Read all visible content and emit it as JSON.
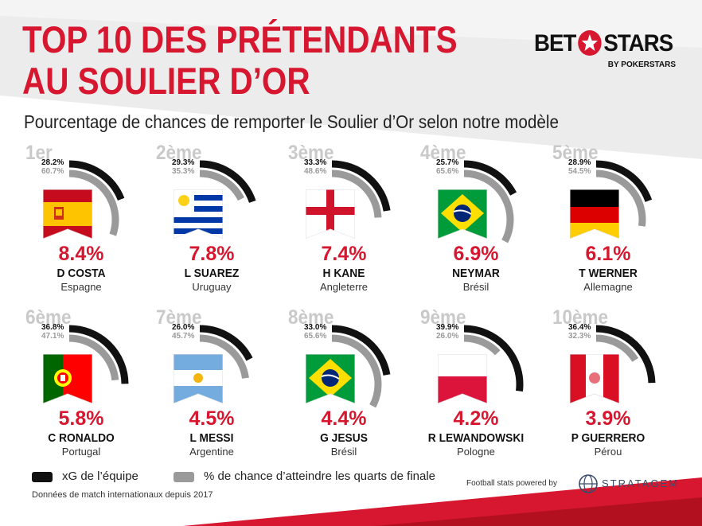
{
  "header": {
    "title_line1": "TOP 10 DES PRÉTENDANTS",
    "title_line2": "AU SOULIER D’OR",
    "subtitle": "Pourcentage de chances de remporter le Soulier d’Or selon notre modèle"
  },
  "brand": {
    "name_left": "BET",
    "name_right": "STARS",
    "tagline": "BY POKERSTARS"
  },
  "colors": {
    "accent": "#d7172f",
    "xg": "#111111",
    "qf": "#9a9a9a",
    "rank": "#c9c9c9"
  },
  "chart_data": {
    "type": "radial-bar",
    "title": "Pourcentage de chances de remporter le Soulier d’Or selon notre modèle",
    "series": [
      {
        "name": "xG de l’équipe",
        "color": "#111111"
      },
      {
        "name": "% de chance d’atteindre les quarts de finale",
        "color": "#9a9a9a"
      }
    ],
    "players": [
      {
        "rank": "1er",
        "xg": "28.2%",
        "xg_value": 28.2,
        "qf": "60.7%",
        "qf_value": 60.7,
        "prob": "8.4%",
        "name": "D COSTA",
        "country": "Espagne",
        "flag": "spain"
      },
      {
        "rank": "2ème",
        "xg": "29.3%",
        "xg_value": 29.3,
        "qf": "35.3%",
        "qf_value": 35.3,
        "prob": "7.8%",
        "name": "L SUAREZ",
        "country": "Uruguay",
        "flag": "uruguay"
      },
      {
        "rank": "3ème",
        "xg": "33.3%",
        "xg_value": 33.3,
        "qf": "48.6%",
        "qf_value": 48.6,
        "prob": "7.4%",
        "name": "H KANE",
        "country": "Angleterre",
        "flag": "england"
      },
      {
        "rank": "4ème",
        "xg": "25.7%",
        "xg_value": 25.7,
        "qf": "65.6%",
        "qf_value": 65.6,
        "prob": "6.9%",
        "name": "NEYMAR",
        "country": "Brésil",
        "flag": "brazil"
      },
      {
        "rank": "5ème",
        "xg": "28.9%",
        "xg_value": 28.9,
        "qf": "54.5%",
        "qf_value": 54.5,
        "prob": "6.1%",
        "name": "T WERNER",
        "country": "Allemagne",
        "flag": "germany"
      },
      {
        "rank": "6ème",
        "xg": "36.8%",
        "xg_value": 36.8,
        "qf": "47.1%",
        "qf_value": 47.1,
        "prob": "5.8%",
        "name": "C RONALDO",
        "country": "Portugal",
        "flag": "portugal"
      },
      {
        "rank": "7ème",
        "xg": "26.0%",
        "xg_value": 26.0,
        "qf": "45.7%",
        "qf_value": 45.7,
        "prob": "4.5%",
        "name": "L MESSI",
        "country": "Argentine",
        "flag": "argentina"
      },
      {
        "rank": "8ème",
        "xg": "33.0%",
        "xg_value": 33.0,
        "qf": "65.6%",
        "qf_value": 65.6,
        "prob": "4.4%",
        "name": "G JESUS",
        "country": "Brésil",
        "flag": "brazil"
      },
      {
        "rank": "9ème",
        "xg": "39.9%",
        "xg_value": 39.9,
        "qf": "26.0%",
        "qf_value": 26.0,
        "prob": "4.2%",
        "name": "R LEWANDOWSKI",
        "country": "Pologne",
        "flag": "poland"
      },
      {
        "rank": "10ème",
        "xg": "36.4%",
        "xg_value": 36.4,
        "qf": "32.3%",
        "qf_value": 32.3,
        "prob": "3.9%",
        "name": "P GUERRERO",
        "country": "Pérou",
        "flag": "peru"
      }
    ]
  },
  "legend": {
    "xg_label": "xG de l’équipe",
    "qf_label": "% de chance d’atteindre les quarts de finale"
  },
  "footer": {
    "note": "Données de match internationaux depuis 2017",
    "powered_by": "Football stats powered by",
    "partner": "STRATAGEM"
  }
}
